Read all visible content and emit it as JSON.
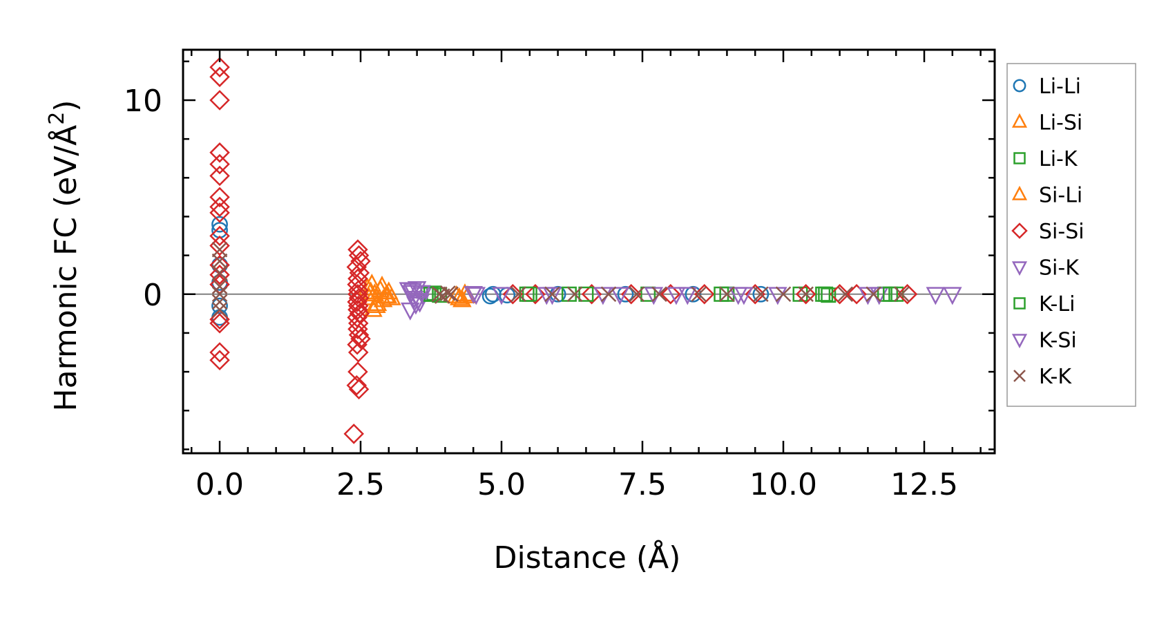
{
  "chart_data": {
    "type": "scatter",
    "title": "",
    "xlabel": "Distance (Å)",
    "ylabel": "Harmonic FC (eV/Å²)",
    "ylabel_main": "Harmonic FC (eV/Å",
    "ylabel_sup": "2",
    "ylabel_close": ")",
    "xlim": [
      -0.65,
      13.75
    ],
    "ylim": [
      -8.2,
      12.6
    ],
    "xticks": [
      0.0,
      2.5,
      5.0,
      7.5,
      10.0,
      12.5
    ],
    "xtick_labels": [
      "0.0",
      "2.5",
      "5.0",
      "7.5",
      "10.0",
      "12.5"
    ],
    "yticks": [
      0,
      10
    ],
    "ytick_labels": [
      "0",
      "10"
    ],
    "zero_line": true,
    "legend_position": "outside-right",
    "series": [
      {
        "name": "Li-Li",
        "marker": "circle",
        "color": "#1f77b4",
        "points": [
          [
            0.0,
            3.6
          ],
          [
            0.0,
            3.3
          ],
          [
            0.0,
            1.5
          ],
          [
            0.0,
            0.6
          ],
          [
            0.0,
            -0.6
          ],
          [
            0.0,
            -1.2
          ],
          [
            4.8,
            -0.1
          ],
          [
            4.85,
            0.0
          ],
          [
            5.1,
            -0.05
          ],
          [
            6.0,
            0.0
          ],
          [
            7.2,
            0.0
          ],
          [
            8.4,
            0.0
          ],
          [
            9.6,
            0.0
          ]
        ]
      },
      {
        "name": "Li-Si",
        "marker": "triangle-up",
        "color": "#ff7f0e",
        "points": [
          [
            2.62,
            0.3
          ],
          [
            2.65,
            -0.2
          ],
          [
            2.7,
            0.5
          ],
          [
            2.72,
            -0.8
          ],
          [
            2.75,
            0.0
          ],
          [
            2.8,
            -0.5
          ],
          [
            2.85,
            0.2
          ],
          [
            2.9,
            -0.3
          ],
          [
            2.95,
            -0.1
          ],
          [
            3.0,
            0.1
          ],
          [
            3.05,
            -0.2
          ],
          [
            4.2,
            -0.1
          ],
          [
            4.3,
            -0.3
          ],
          [
            4.35,
            0.0
          ]
        ]
      },
      {
        "name": "Li-K",
        "marker": "square",
        "color": "#2ca02c",
        "points": [
          [
            3.7,
            0.0
          ],
          [
            3.8,
            0.05
          ],
          [
            3.9,
            -0.05
          ],
          [
            5.5,
            0.0
          ],
          [
            6.2,
            0.0
          ],
          [
            7.6,
            0.0
          ],
          [
            9.0,
            0.0
          ],
          [
            10.3,
            0.0
          ],
          [
            10.7,
            0.0
          ],
          [
            10.8,
            -0.05
          ],
          [
            11.8,
            0.0
          ],
          [
            12.0,
            0.0
          ]
        ]
      },
      {
        "name": "Si-Li",
        "marker": "triangle-up",
        "color": "#ff7f0e",
        "points": [
          [
            2.68,
            0.1
          ],
          [
            2.78,
            -0.6
          ],
          [
            2.88,
            0.4
          ],
          [
            2.98,
            -0.1
          ],
          [
            4.25,
            -0.2
          ],
          [
            4.4,
            -0.1
          ]
        ]
      },
      {
        "name": "Si-Si",
        "marker": "diamond",
        "color": "#d62728",
        "points": [
          [
            0.0,
            11.7
          ],
          [
            0.0,
            11.2
          ],
          [
            0.0,
            10.0
          ],
          [
            0.0,
            7.3
          ],
          [
            0.0,
            6.7
          ],
          [
            0.0,
            6.1
          ],
          [
            0.0,
            5.0
          ],
          [
            0.0,
            4.5
          ],
          [
            0.0,
            4.2
          ],
          [
            0.0,
            3.0
          ],
          [
            0.0,
            2.5
          ],
          [
            0.0,
            1.5
          ],
          [
            0.0,
            1.0
          ],
          [
            0.0,
            0.5
          ],
          [
            0.0,
            -1.3
          ],
          [
            0.0,
            -1.5
          ],
          [
            0.0,
            -3.0
          ],
          [
            0.0,
            -3.4
          ],
          [
            2.45,
            2.3
          ],
          [
            2.47,
            2.0
          ],
          [
            2.5,
            1.7
          ],
          [
            2.43,
            1.4
          ],
          [
            2.48,
            1.1
          ],
          [
            2.45,
            0.8
          ],
          [
            2.44,
            0.5
          ],
          [
            2.46,
            0.2
          ],
          [
            2.45,
            0.0
          ],
          [
            2.47,
            -0.2
          ],
          [
            2.44,
            -0.4
          ],
          [
            2.46,
            -0.6
          ],
          [
            2.45,
            -0.8
          ],
          [
            2.48,
            -1.0
          ],
          [
            2.44,
            -1.2
          ],
          [
            2.46,
            -1.5
          ],
          [
            2.45,
            -1.8
          ],
          [
            2.47,
            -2.1
          ],
          [
            2.5,
            -2.3
          ],
          [
            2.44,
            -2.6
          ],
          [
            2.46,
            -3.0
          ],
          [
            2.45,
            -4.0
          ],
          [
            2.43,
            -4.7
          ],
          [
            2.47,
            -4.9
          ],
          [
            2.38,
            -7.2
          ],
          [
            5.2,
            0.0
          ],
          [
            5.6,
            0.0
          ],
          [
            6.6,
            0.0
          ],
          [
            7.3,
            0.0
          ],
          [
            8.0,
            0.0
          ],
          [
            8.6,
            0.0
          ],
          [
            9.5,
            0.0
          ],
          [
            10.4,
            0.0
          ],
          [
            11.0,
            0.0
          ],
          [
            11.3,
            0.0
          ],
          [
            12.2,
            0.0
          ]
        ]
      },
      {
        "name": "Si-K",
        "marker": "triangle-down",
        "color": "#9467bd",
        "points": [
          [
            3.35,
            0.25
          ],
          [
            3.4,
            0.1
          ],
          [
            3.45,
            -0.2
          ],
          [
            3.5,
            0.3
          ],
          [
            3.55,
            -0.4
          ],
          [
            3.6,
            0.0
          ],
          [
            3.38,
            -0.8
          ],
          [
            3.48,
            -0.5
          ],
          [
            4.5,
            0.05
          ],
          [
            5.0,
            0.0
          ],
          [
            5.8,
            0.0
          ],
          [
            6.8,
            0.0
          ],
          [
            7.7,
            0.0
          ],
          [
            8.3,
            0.0
          ],
          [
            9.2,
            0.0
          ],
          [
            9.9,
            0.0
          ],
          [
            11.7,
            0.0
          ],
          [
            12.7,
            0.0
          ],
          [
            13.0,
            0.0
          ]
        ]
      },
      {
        "name": "K-Li",
        "marker": "square",
        "color": "#2ca02c",
        "points": [
          [
            3.75,
            0.0
          ],
          [
            5.45,
            0.0
          ],
          [
            6.5,
            0.0
          ],
          [
            8.9,
            0.0
          ],
          [
            10.75,
            0.0
          ],
          [
            11.9,
            0.0
          ]
        ]
      },
      {
        "name": "K-Si",
        "marker": "triangle-down",
        "color": "#9467bd",
        "points": [
          [
            3.42,
            0.2
          ],
          [
            3.52,
            -0.3
          ],
          [
            3.58,
            0.1
          ],
          [
            4.55,
            0.0
          ],
          [
            5.9,
            0.0
          ],
          [
            7.1,
            0.0
          ],
          [
            8.1,
            0.0
          ],
          [
            9.3,
            0.0
          ],
          [
            11.5,
            0.0
          ]
        ]
      },
      {
        "name": "K-K",
        "marker": "x",
        "color": "#8c564b",
        "points": [
          [
            0.0,
            2.3
          ],
          [
            0.0,
            1.7
          ],
          [
            0.0,
            1.1
          ],
          [
            0.0,
            0.4
          ],
          [
            0.0,
            0.0
          ],
          [
            0.0,
            -0.4
          ],
          [
            0.0,
            -0.8
          ],
          [
            3.9,
            0.0
          ],
          [
            3.95,
            -0.1
          ],
          [
            4.05,
            0.05
          ],
          [
            4.1,
            0.0
          ],
          [
            5.3,
            0.0
          ],
          [
            5.9,
            0.0
          ],
          [
            6.3,
            0.0
          ],
          [
            6.9,
            0.0
          ],
          [
            7.4,
            0.0
          ],
          [
            7.8,
            0.0
          ],
          [
            8.5,
            0.0
          ],
          [
            9.0,
            0.0
          ],
          [
            9.6,
            0.0
          ],
          [
            10.0,
            0.0
          ],
          [
            10.4,
            0.0
          ],
          [
            11.1,
            0.0
          ],
          [
            11.6,
            0.0
          ],
          [
            12.1,
            0.0
          ]
        ]
      }
    ]
  }
}
